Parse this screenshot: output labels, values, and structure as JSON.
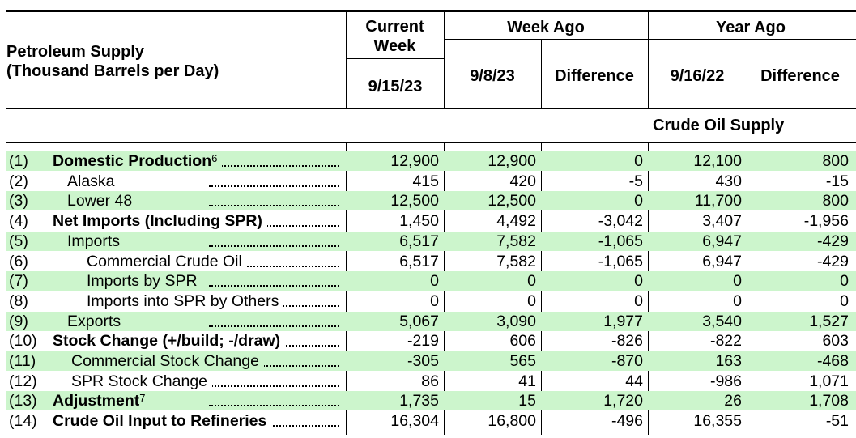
{
  "table": {
    "title_line1": "Petroleum Supply",
    "title_line2": "(Thousand Barrels per Day)",
    "current_week_label": "Current Week",
    "current_week_date": "9/15/23",
    "week_ago_label": "Week Ago",
    "week_ago_date": "9/8/23",
    "year_ago_label": "Year Ago",
    "year_ago_date": "9/16/22",
    "difference_label": "Difference",
    "section_title": "Crude Oil Supply",
    "shade_color": "#ccf5cc",
    "rows": [
      {
        "num": "(1)",
        "label": "Domestic Production",
        "sup": "6",
        "bold": true,
        "shaded": true,
        "indent": 0,
        "current": "12,900",
        "week_ago": "12,900",
        "week_diff": "0",
        "year_ago": "12,100",
        "year_diff": "800"
      },
      {
        "num": "(2)",
        "label": "Alaska",
        "sup": "",
        "bold": false,
        "shaded": false,
        "indent": 1,
        "current": "415",
        "week_ago": "420",
        "week_diff": "-5",
        "year_ago": "430",
        "year_diff": "-15"
      },
      {
        "num": "(3)",
        "label": "Lower 48",
        "sup": "",
        "bold": false,
        "shaded": true,
        "indent": 1,
        "current": "12,500",
        "week_ago": "12,500",
        "week_diff": "0",
        "year_ago": "11,700",
        "year_diff": "800"
      },
      {
        "num": "(4)",
        "label": "Net Imports (Including SPR)",
        "sup": "",
        "bold": true,
        "shaded": false,
        "indent": 0,
        "current": "1,450",
        "week_ago": "4,492",
        "week_diff": "-3,042",
        "year_ago": "3,407",
        "year_diff": "-1,956"
      },
      {
        "num": "(5)",
        "label": "Imports",
        "sup": "",
        "bold": false,
        "shaded": true,
        "indent": 1,
        "current": "6,517",
        "week_ago": "7,582",
        "week_diff": "-1,065",
        "year_ago": "6,947",
        "year_diff": "-429"
      },
      {
        "num": "(6)",
        "label": "Commercial Crude Oil",
        "sup": "",
        "bold": false,
        "shaded": false,
        "indent": 2,
        "current": "6,517",
        "week_ago": "7,582",
        "week_diff": "-1,065",
        "year_ago": "6,947",
        "year_diff": "-429"
      },
      {
        "num": "(7)",
        "label": "Imports by SPR",
        "sup": "",
        "bold": false,
        "shaded": true,
        "indent": 2,
        "current": "0",
        "week_ago": "0",
        "week_diff": "0",
        "year_ago": "0",
        "year_diff": "0"
      },
      {
        "num": "(8)",
        "label": "Imports into SPR by Others",
        "sup": "",
        "bold": false,
        "shaded": false,
        "indent": 2,
        "current": "0",
        "week_ago": "0",
        "week_diff": "0",
        "year_ago": "0",
        "year_diff": "0"
      },
      {
        "num": "(9)",
        "label": "Exports",
        "sup": "",
        "bold": false,
        "shaded": true,
        "indent": 1,
        "current": "5,067",
        "week_ago": "3,090",
        "week_diff": "1,977",
        "year_ago": "3,540",
        "year_diff": "1,527"
      },
      {
        "num": "(10)",
        "label": "Stock Change (+/build; -/draw)",
        "sup": "",
        "bold": true,
        "shaded": false,
        "indent": 0,
        "current": "-219",
        "week_ago": "606",
        "week_diff": "-826",
        "year_ago": "-822",
        "year_diff": "603"
      },
      {
        "num": "(11)",
        "label": "Commercial Stock Change",
        "sup": "",
        "bold": false,
        "shaded": true,
        "indent": 1.2,
        "current": "-305",
        "week_ago": "565",
        "week_diff": "-870",
        "year_ago": "163",
        "year_diff": "-468"
      },
      {
        "num": "(12)",
        "label": "SPR Stock Change",
        "sup": "",
        "bold": false,
        "shaded": false,
        "indent": 1.2,
        "current": "86",
        "week_ago": "41",
        "week_diff": "44",
        "year_ago": "-986",
        "year_diff": "1,071"
      },
      {
        "num": "(13)",
        "label": "Adjustment",
        "sup": "7",
        "bold": true,
        "shaded": true,
        "indent": 0,
        "current": "1,735",
        "week_ago": "15",
        "week_diff": "1,720",
        "year_ago": "26",
        "year_diff": "1,708"
      },
      {
        "num": "(14)",
        "label": "Crude Oil Input to Refineries",
        "sup": "",
        "bold": true,
        "shaded": false,
        "indent": 0,
        "current": "16,304",
        "week_ago": "16,800",
        "week_diff": "-496",
        "year_ago": "16,355",
        "year_diff": "-51"
      }
    ]
  }
}
